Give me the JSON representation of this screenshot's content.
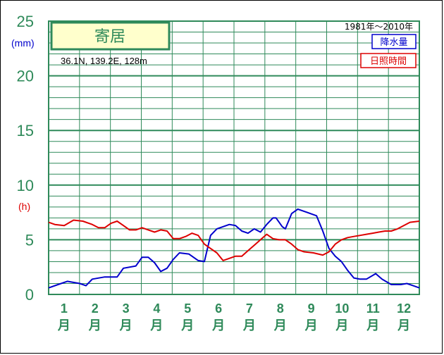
{
  "chart_data": {
    "type": "line",
    "station": "寄居",
    "coords": "36.1N,  139.2E,  128m",
    "period": "1981年〜2010年",
    "y_ticks": [
      "0",
      "5",
      "10",
      "15",
      "20",
      "25"
    ],
    "unit_precip": "(mm)",
    "unit_sun": "(h)",
    "months": [
      "1",
      "2",
      "3",
      "4",
      "5",
      "6",
      "7",
      "8",
      "9",
      "10",
      "11",
      "12"
    ],
    "month_char": "月",
    "ylim": [
      0,
      25
    ],
    "xlim": [
      1,
      12.9
    ],
    "series": [
      {
        "name": "降水量",
        "color": "#0000cc",
        "points": [
          [
            1.0,
            0.6
          ],
          [
            1.3,
            0.9
          ],
          [
            1.6,
            1.2
          ],
          [
            2.0,
            1.0
          ],
          [
            2.2,
            0.8
          ],
          [
            2.4,
            1.4
          ],
          [
            2.8,
            1.6
          ],
          [
            3.2,
            1.6
          ],
          [
            3.4,
            2.4
          ],
          [
            3.8,
            2.6
          ],
          [
            4.0,
            3.4
          ],
          [
            4.2,
            3.4
          ],
          [
            4.4,
            2.9
          ],
          [
            4.6,
            2.1
          ],
          [
            4.8,
            2.4
          ],
          [
            5.0,
            3.2
          ],
          [
            5.2,
            3.8
          ],
          [
            5.5,
            3.7
          ],
          [
            5.8,
            3.1
          ],
          [
            6.0,
            3.0
          ],
          [
            6.2,
            5.4
          ],
          [
            6.4,
            6.0
          ],
          [
            6.8,
            6.4
          ],
          [
            7.0,
            6.3
          ],
          [
            7.2,
            5.8
          ],
          [
            7.4,
            5.6
          ],
          [
            7.6,
            6.0
          ],
          [
            7.8,
            5.7
          ],
          [
            8.0,
            6.4
          ],
          [
            8.2,
            7.0
          ],
          [
            8.3,
            7.0
          ],
          [
            8.5,
            6.2
          ],
          [
            8.6,
            6.0
          ],
          [
            8.8,
            7.4
          ],
          [
            9.0,
            7.8
          ],
          [
            9.3,
            7.5
          ],
          [
            9.6,
            7.2
          ],
          [
            9.8,
            5.8
          ],
          [
            10.0,
            4.2
          ],
          [
            10.2,
            3.5
          ],
          [
            10.4,
            3.0
          ],
          [
            10.6,
            2.2
          ],
          [
            10.8,
            1.5
          ],
          [
            11.0,
            1.4
          ],
          [
            11.2,
            1.4
          ],
          [
            11.5,
            1.9
          ],
          [
            11.7,
            1.4
          ],
          [
            12.0,
            0.9
          ],
          [
            12.3,
            0.9
          ],
          [
            12.5,
            1.0
          ],
          [
            12.7,
            0.8
          ],
          [
            12.9,
            0.6
          ]
        ]
      },
      {
        "name": "日照時間",
        "color": "#dd0000",
        "points": [
          [
            1.0,
            6.6
          ],
          [
            1.2,
            6.4
          ],
          [
            1.5,
            6.3
          ],
          [
            1.8,
            6.8
          ],
          [
            2.1,
            6.7
          ],
          [
            2.4,
            6.4
          ],
          [
            2.6,
            6.1
          ],
          [
            2.8,
            6.1
          ],
          [
            3.0,
            6.5
          ],
          [
            3.2,
            6.7
          ],
          [
            3.4,
            6.3
          ],
          [
            3.6,
            5.9
          ],
          [
            3.8,
            5.9
          ],
          [
            4.0,
            6.1
          ],
          [
            4.2,
            5.9
          ],
          [
            4.4,
            5.7
          ],
          [
            4.6,
            5.9
          ],
          [
            4.8,
            5.8
          ],
          [
            5.0,
            5.1
          ],
          [
            5.2,
            5.1
          ],
          [
            5.4,
            5.3
          ],
          [
            5.6,
            5.6
          ],
          [
            5.8,
            5.4
          ],
          [
            6.0,
            4.6
          ],
          [
            6.2,
            4.2
          ],
          [
            6.4,
            3.8
          ],
          [
            6.6,
            3.1
          ],
          [
            6.8,
            3.3
          ],
          [
            7.0,
            3.5
          ],
          [
            7.2,
            3.5
          ],
          [
            7.4,
            4.0
          ],
          [
            7.6,
            4.5
          ],
          [
            7.8,
            5.0
          ],
          [
            8.0,
            5.5
          ],
          [
            8.2,
            5.1
          ],
          [
            8.4,
            5.0
          ],
          [
            8.6,
            5.0
          ],
          [
            8.8,
            4.6
          ],
          [
            9.0,
            4.1
          ],
          [
            9.2,
            3.9
          ],
          [
            9.5,
            3.8
          ],
          [
            9.8,
            3.6
          ],
          [
            10.0,
            3.9
          ],
          [
            10.2,
            4.6
          ],
          [
            10.4,
            5.0
          ],
          [
            10.6,
            5.2
          ],
          [
            10.8,
            5.3
          ],
          [
            11.0,
            5.4
          ],
          [
            11.2,
            5.5
          ],
          [
            11.4,
            5.6
          ],
          [
            11.6,
            5.7
          ],
          [
            11.8,
            5.8
          ],
          [
            12.0,
            5.8
          ],
          [
            12.2,
            6.0
          ],
          [
            12.4,
            6.3
          ],
          [
            12.6,
            6.6
          ],
          [
            12.9,
            6.7
          ]
        ]
      }
    ],
    "grid": true,
    "legend": "top-right"
  }
}
